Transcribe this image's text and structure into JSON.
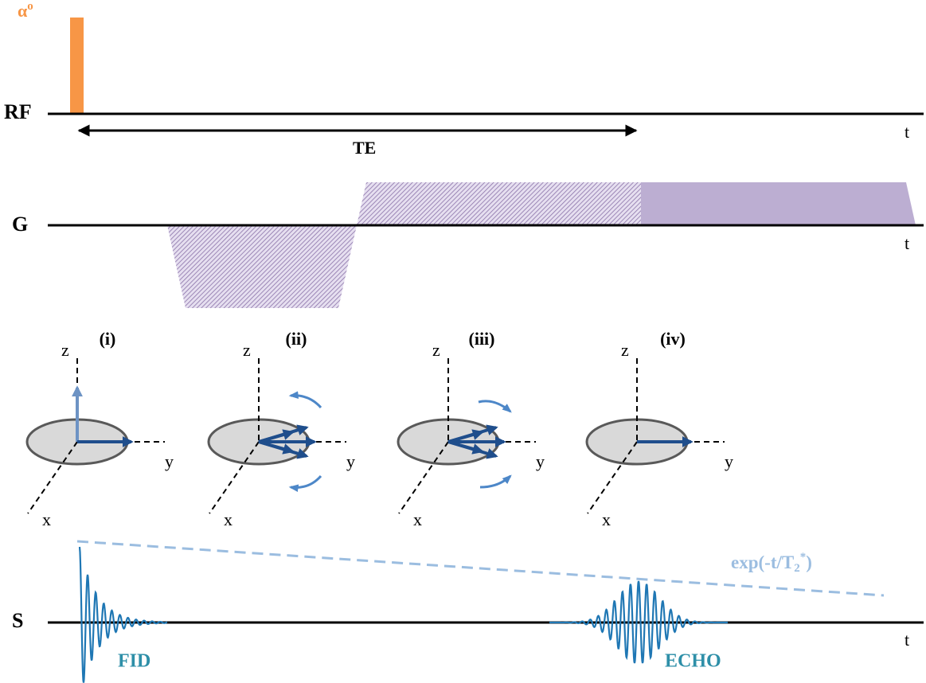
{
  "rf": {
    "flip": {
      "symbol": "α",
      "sup": "o"
    },
    "label": "RF",
    "time": "t",
    "te": "TE"
  },
  "gradient": {
    "label": "G",
    "time": "t"
  },
  "panels": [
    {
      "label": "(i)",
      "z": "z",
      "y": "y",
      "x": "x"
    },
    {
      "label": "(ii)",
      "z": "z",
      "y": "y",
      "x": "x"
    },
    {
      "label": "(iii)",
      "z": "z",
      "y": "y",
      "x": "x"
    },
    {
      "label": "(iv)",
      "z": "z",
      "y": "y",
      "x": "x"
    }
  ],
  "signal": {
    "label": "S",
    "time": "t",
    "decay": {
      "prefix": "exp(-t/T",
      "sub": "2",
      "sup": "*",
      "suffix": ")"
    },
    "fid": "FID",
    "echo": "ECHO"
  }
}
